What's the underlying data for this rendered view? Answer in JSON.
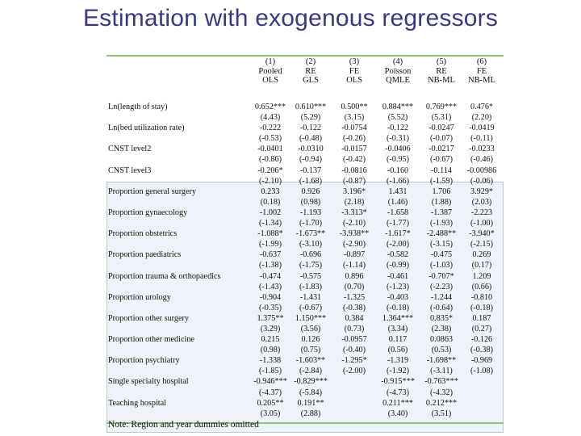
{
  "title": "Estimation with exogenous regressors",
  "table": {
    "columns": [
      {
        "num": "(1)",
        "l1": "Pooled",
        "l2": "OLS"
      },
      {
        "num": "(2)",
        "l1": "RE",
        "l2": "GLS"
      },
      {
        "num": "(3)",
        "l1": "FE",
        "l2": "OLS"
      },
      {
        "num": "(4)",
        "l1": "Poisson",
        "l2": "QMLE"
      },
      {
        "num": "(5)",
        "l1": "RE",
        "l2": "NB-ML"
      },
      {
        "num": "(6)",
        "l1": "FE",
        "l2": "NB-ML"
      }
    ],
    "rows": [
      {
        "label": "Ln(length of stay)",
        "vals": [
          "0.652***",
          "0.610***",
          "0.500**",
          "0.884***",
          "0.769***",
          "0.476*"
        ]
      },
      {
        "label": "",
        "vals": [
          "(4.43)",
          "(5.29)",
          "(3.15)",
          "(5.52)",
          "(5.31)",
          "(2.20)"
        ]
      },
      {
        "label": "Ln(bed utilization rate)",
        "vals": [
          "-0.222",
          "-0.122",
          "-0.0754",
          "-0.122",
          "-0.0247",
          "-0.0419"
        ]
      },
      {
        "label": "",
        "vals": [
          "(-0.53)",
          "(-0.48)",
          "(-0.26)",
          "(-0.31)",
          "(-0.07)",
          "(-0.11)"
        ]
      },
      {
        "label": "CNST level2",
        "vals": [
          "-0.0401",
          "-0.0310",
          "-0.0157",
          "-0.0406",
          "-0.0217",
          "-0.0233"
        ]
      },
      {
        "label": "",
        "vals": [
          "(-0.86)",
          "(-0.94)",
          "(-0.42)",
          "(-0.95)",
          "(-0.67)",
          "(-0.46)"
        ]
      },
      {
        "label": "CNST level3",
        "vals": [
          "-0.206*",
          "-0.137",
          "-0.0816",
          "-0.160",
          "-0.114",
          "-0.00986"
        ]
      },
      {
        "label": "",
        "vals": [
          "(-2.10)",
          "(-1.68)",
          "(-0.87)",
          "(-1.66)",
          "(-1.59)",
          "(-0.06)"
        ]
      },
      {
        "label": "Proportion general surgery",
        "vals": [
          "0.233",
          "0.926",
          "3.196*",
          "1.431",
          "1.706",
          "3.929*"
        ]
      },
      {
        "label": "",
        "vals": [
          "(0.18)",
          "(0.98)",
          "(2.18)",
          "(1.46)",
          "(1.88)",
          "(2.03)"
        ]
      },
      {
        "label": "Proportion gynaecology",
        "vals": [
          "-1.002",
          "-1.193",
          "-3.313*",
          "-1.658",
          "-1.387",
          "-2.223"
        ]
      },
      {
        "label": "",
        "vals": [
          "(-1.34)",
          "(-1.70)",
          "(-2.10)",
          "(-1.77)",
          "(-1.93)",
          "(-1.00)"
        ]
      },
      {
        "label": "Proportion obstetrics",
        "vals": [
          "-1.088*",
          "-1.673**",
          "-3.938**",
          "-1.617*",
          "-2.488**",
          "-3.940*"
        ]
      },
      {
        "label": "",
        "vals": [
          "(-1.99)",
          "(-3.10)",
          "(-2.90)",
          "(-2.00)",
          "(-3.15)",
          "(-2.15)"
        ]
      },
      {
        "label": "Proportion paediatrics",
        "vals": [
          "-0.637",
          "-0.696",
          "-0.897",
          "-0.582",
          "-0.475",
          "0.269"
        ]
      },
      {
        "label": "",
        "vals": [
          "(-1.38)",
          "(-1.75)",
          "(-1.14)",
          "(-0.99)",
          "(-1.03)",
          "(0.17)"
        ]
      },
      {
        "label": "Proportion trauma & orthopaedics",
        "vals": [
          "-0.474",
          "-0.575",
          "0.896",
          "-0.461",
          "-0.707*",
          "1.209"
        ]
      },
      {
        "label": "",
        "vals": [
          "(-1.43)",
          "(-1.83)",
          "(0.70)",
          "(-1.23)",
          "(-2.23)",
          "(0.66)"
        ]
      },
      {
        "label": "Proportion urology",
        "vals": [
          "-0.904",
          "-1.431",
          "-1.325",
          "-0.403",
          "-1.244",
          "-0.810"
        ]
      },
      {
        "label": "",
        "vals": [
          "(-0.35)",
          "(-0.67)",
          "(-0.38)",
          "(-0.18)",
          "(-0.64)",
          "(-0.18)"
        ]
      },
      {
        "label": "Proportion other surgery",
        "vals": [
          "1.375**",
          "1.150***",
          "0.384",
          "1.364***",
          "0.835*",
          "0.187"
        ]
      },
      {
        "label": "",
        "vals": [
          "(3.29)",
          "(3.56)",
          "(0.73)",
          "(3.34)",
          "(2.38)",
          "(0.27)"
        ]
      },
      {
        "label": "Proportion other medicine",
        "vals": [
          "0.215",
          "0.126",
          "-0.0957",
          "0.117",
          "0.0863",
          "-0.126"
        ]
      },
      {
        "label": "",
        "vals": [
          "(0.98)",
          "(0.75)",
          "(-0.40)",
          "(0.56)",
          "(0.53)",
          "(-0.38)"
        ]
      },
      {
        "label": "Proportion psychiatry",
        "vals": [
          "-1.338",
          "-1.603**",
          "-1.295*",
          "-1.319",
          "-1.698**",
          "-0.969"
        ]
      },
      {
        "label": "",
        "vals": [
          "(-1.85)",
          "(-2.84)",
          "(-2.00)",
          "(-1.92)",
          "(-3.11)",
          "(-1.08)"
        ]
      },
      {
        "label": "Single specialty hospital",
        "vals": [
          "-0.946***",
          "-0.829***",
          "",
          "-0.915***",
          "-0.763***",
          ""
        ]
      },
      {
        "label": "",
        "vals": [
          "(-4.37)",
          "(-5.84)",
          "",
          "(-4.73)",
          "(-4.32)",
          ""
        ]
      },
      {
        "label": "Teaching hospital",
        "vals": [
          "0.205**",
          "0.191**",
          "",
          "0.211***",
          "0.212***",
          ""
        ]
      },
      {
        "label": "",
        "vals": [
          "(3.05)",
          "(2.88)",
          "",
          "(3.40)",
          "(3.51)",
          ""
        ]
      }
    ]
  },
  "note": "Note: Region and year dummies omitted",
  "colors": {
    "title": "#3a3a7a",
    "rule": "#8fbf7f",
    "highlight_bg": "#eef3f9",
    "highlight_border": "#b9c9dd"
  }
}
